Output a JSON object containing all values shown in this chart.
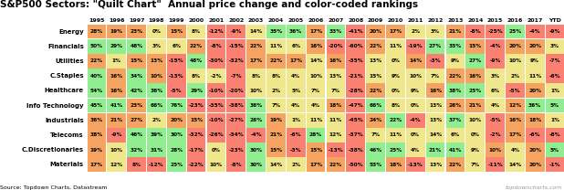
{
  "title": "S&P500 Sectors: \"Quilt Chart\"  Annual price change and color-coded rankings",
  "columns": [
    "1995",
    "1996",
    "1997",
    "1998",
    "1999",
    "2000",
    "2001",
    "2002",
    "2003",
    "2004",
    "2005",
    "2006",
    "2007",
    "2008",
    "2009",
    "2010",
    "2011",
    "2012",
    "2013",
    "2014",
    "2015",
    "2016",
    "2017",
    "YTD"
  ],
  "rows": [
    "Energy",
    "Financials",
    "Utilities",
    "C.Staples",
    "Healthcare",
    "Info Technology",
    "Industrials",
    "Telecoms",
    "C.Discretionaries",
    "Materials"
  ],
  "values": [
    [
      28,
      19,
      23,
      0,
      15,
      8,
      -12,
      -9,
      14,
      35,
      36,
      17,
      33,
      -41,
      20,
      17,
      2,
      3,
      21,
      -8,
      -25,
      25,
      -4,
      -9
    ],
    [
      50,
      29,
      48,
      3,
      6,
      22,
      -8,
      -15,
      22,
      11,
      6,
      16,
      -20,
      -60,
      22,
      11,
      -19,
      27,
      33,
      15,
      -4,
      20,
      20,
      3
    ],
    [
      22,
      1,
      15,
      13,
      -15,
      48,
      -30,
      -32,
      17,
      22,
      17,
      14,
      16,
      -35,
      13,
      0,
      14,
      -3,
      9,
      27,
      -9,
      10,
      9,
      -7
    ],
    [
      40,
      16,
      34,
      10,
      -13,
      8,
      -2,
      -7,
      8,
      8,
      4,
      10,
      13,
      -21,
      15,
      9,
      10,
      7,
      22,
      16,
      3,
      2,
      11,
      -6
    ],
    [
      54,
      16,
      42,
      36,
      -5,
      29,
      -10,
      -20,
      10,
      2,
      5,
      7,
      7,
      -28,
      22,
      0,
      9,
      16,
      38,
      25,
      6,
      -5,
      20,
      1
    ],
    [
      45,
      41,
      23,
      66,
      76,
      -23,
      -35,
      -38,
      36,
      7,
      4,
      4,
      18,
      -47,
      66,
      8,
      0,
      13,
      26,
      21,
      4,
      12,
      36,
      5
    ],
    [
      36,
      21,
      27,
      2,
      20,
      15,
      -10,
      -27,
      26,
      19,
      1,
      11,
      11,
      -45,
      24,
      22,
      -4,
      13,
      37,
      10,
      -5,
      16,
      18,
      1
    ],
    [
      38,
      -9,
      46,
      39,
      30,
      -32,
      -26,
      -34,
      -4,
      21,
      -6,
      28,
      12,
      -37,
      7,
      11,
      0,
      14,
      6,
      0,
      -2,
      17,
      -6,
      -8
    ],
    [
      19,
      10,
      32,
      31,
      28,
      -17,
      0,
      -23,
      30,
      15,
      -3,
      15,
      -13,
      -38,
      46,
      25,
      4,
      21,
      41,
      9,
      10,
      4,
      20,
      5
    ],
    [
      17,
      12,
      8,
      -12,
      25,
      -22,
      10,
      -8,
      30,
      14,
      2,
      17,
      22,
      -50,
      53,
      18,
      -13,
      13,
      22,
      7,
      -11,
      14,
      20,
      -1
    ]
  ],
  "colors": [
    [
      "#f4a460",
      "#f4a460",
      "#f4a460",
      "#f0e68c",
      "#f4a460",
      "#f0e68c",
      "#fa8072",
      "#fa8072",
      "#f0e68c",
      "#90ee90",
      "#90ee90",
      "#f4a460",
      "#90ee90",
      "#fa8072",
      "#f4a460",
      "#f4a460",
      "#f0e68c",
      "#f0e68c",
      "#f4a460",
      "#fa8072",
      "#fa8072",
      "#90ee90",
      "#fa8072",
      "#fa8072"
    ],
    [
      "#90ee90",
      "#90ee90",
      "#90ee90",
      "#f0e68c",
      "#f0e68c",
      "#f4a460",
      "#fa8072",
      "#fa8072",
      "#f4a460",
      "#f0e68c",
      "#f0e68c",
      "#f4a460",
      "#fa8072",
      "#fa8072",
      "#f4a460",
      "#f0e68c",
      "#fa8072",
      "#90ee90",
      "#90ee90",
      "#f4a460",
      "#fa8072",
      "#f4a460",
      "#f4a460",
      "#f0e68c"
    ],
    [
      "#f4a460",
      "#f0e68c",
      "#f4a460",
      "#f4a460",
      "#fa8072",
      "#90ee90",
      "#fa8072",
      "#fa8072",
      "#f4a460",
      "#f4a460",
      "#f4a460",
      "#f0e68c",
      "#f4a460",
      "#fa8072",
      "#f0e68c",
      "#f0e68c",
      "#f4a460",
      "#fa8072",
      "#f0e68c",
      "#90ee90",
      "#fa8072",
      "#f0e68c",
      "#f0e68c",
      "#fa8072"
    ],
    [
      "#90ee90",
      "#f4a460",
      "#90ee90",
      "#f4a460",
      "#fa8072",
      "#f0e68c",
      "#f0e68c",
      "#fa8072",
      "#f0e68c",
      "#f0e68c",
      "#f0e68c",
      "#f0e68c",
      "#f0e68c",
      "#fa8072",
      "#f0e68c",
      "#f0e68c",
      "#f0e68c",
      "#f0e68c",
      "#f4a460",
      "#f4a460",
      "#f0e68c",
      "#f0e68c",
      "#f0e68c",
      "#fa8072"
    ],
    [
      "#90ee90",
      "#f4a460",
      "#90ee90",
      "#90ee90",
      "#fa8072",
      "#90ee90",
      "#fa8072",
      "#fa8072",
      "#f0e68c",
      "#f0e68c",
      "#f0e68c",
      "#f0e68c",
      "#f0e68c",
      "#fa8072",
      "#f4a460",
      "#f0e68c",
      "#f0e68c",
      "#f4a460",
      "#90ee90",
      "#90ee90",
      "#f0e68c",
      "#fa8072",
      "#f4a460",
      "#f0e68c"
    ],
    [
      "#90ee90",
      "#90ee90",
      "#f4a460",
      "#90ee90",
      "#90ee90",
      "#fa8072",
      "#fa8072",
      "#fa8072",
      "#90ee90",
      "#f0e68c",
      "#f0e68c",
      "#f0e68c",
      "#f4a460",
      "#fa8072",
      "#90ee90",
      "#f0e68c",
      "#f0e68c",
      "#f0e68c",
      "#f4a460",
      "#f4a460",
      "#f0e68c",
      "#f4a460",
      "#90ee90",
      "#90ee90"
    ],
    [
      "#f4a460",
      "#f4a460",
      "#f4a460",
      "#f0e68c",
      "#f4a460",
      "#f4a460",
      "#fa8072",
      "#fa8072",
      "#90ee90",
      "#f4a460",
      "#f0e68c",
      "#f0e68c",
      "#f0e68c",
      "#fa8072",
      "#f4a460",
      "#90ee90",
      "#fa8072",
      "#f0e68c",
      "#90ee90",
      "#f0e68c",
      "#fa8072",
      "#f4a460",
      "#f4a460",
      "#f0e68c"
    ],
    [
      "#f4a460",
      "#fa8072",
      "#90ee90",
      "#90ee90",
      "#90ee90",
      "#fa8072",
      "#fa8072",
      "#fa8072",
      "#fa8072",
      "#f4a460",
      "#fa8072",
      "#90ee90",
      "#f0e68c",
      "#fa8072",
      "#f0e68c",
      "#f0e68c",
      "#f0e68c",
      "#f0e68c",
      "#f0e68c",
      "#f0e68c",
      "#fa8072",
      "#f4a460",
      "#fa8072",
      "#fa8072"
    ],
    [
      "#f4a460",
      "#f0e68c",
      "#90ee90",
      "#90ee90",
      "#90ee90",
      "#fa8072",
      "#f0e68c",
      "#fa8072",
      "#90ee90",
      "#f4a460",
      "#fa8072",
      "#f4a460",
      "#fa8072",
      "#fa8072",
      "#90ee90",
      "#90ee90",
      "#f0e68c",
      "#90ee90",
      "#90ee90",
      "#f0e68c",
      "#f4a460",
      "#f0e68c",
      "#f4a460",
      "#90ee90"
    ],
    [
      "#f4a460",
      "#f0e68c",
      "#fa8072",
      "#fa8072",
      "#90ee90",
      "#fa8072",
      "#f0e68c",
      "#fa8072",
      "#90ee90",
      "#f0e68c",
      "#f0e68c",
      "#f4a460",
      "#f4a460",
      "#fa8072",
      "#90ee90",
      "#f4a460",
      "#fa8072",
      "#f0e68c",
      "#f4a460",
      "#f0e68c",
      "#fa8072",
      "#f0e68c",
      "#f4a460",
      "#fa8072"
    ]
  ],
  "source_text": "Source: Topdown Charts, Datastream",
  "watermark": "topdowncharts.com",
  "bg_color": "#ffffff",
  "title_fontsize": 7.5,
  "cell_fontsize": 4.2,
  "header_fontsize": 4.5,
  "row_label_fontsize": 5.0
}
